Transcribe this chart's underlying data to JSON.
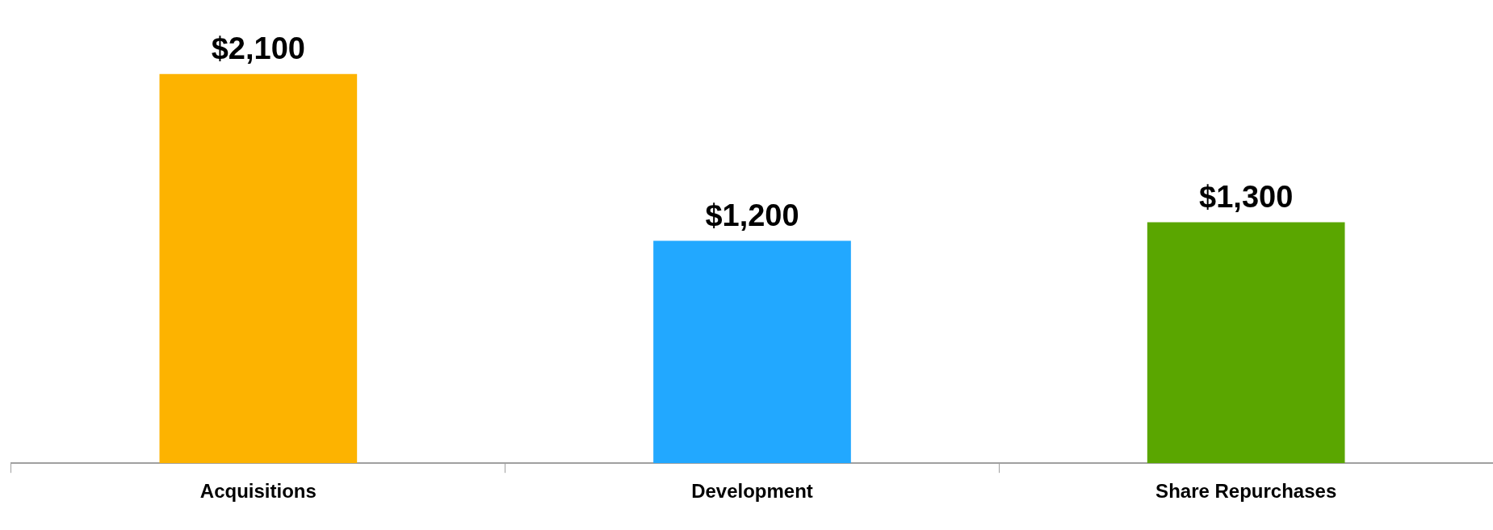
{
  "chart_data": {
    "type": "bar",
    "categories": [
      "Acquisitions",
      "Development",
      "Share Repurchases"
    ],
    "values": [
      2100,
      1200,
      1300
    ],
    "colors": [
      "#fdb300",
      "#22a8ff",
      "#5aa600"
    ],
    "value_labels": [
      "$2,100",
      "$1,200",
      "$1,300"
    ],
    "grid": false,
    "legend": false
  }
}
